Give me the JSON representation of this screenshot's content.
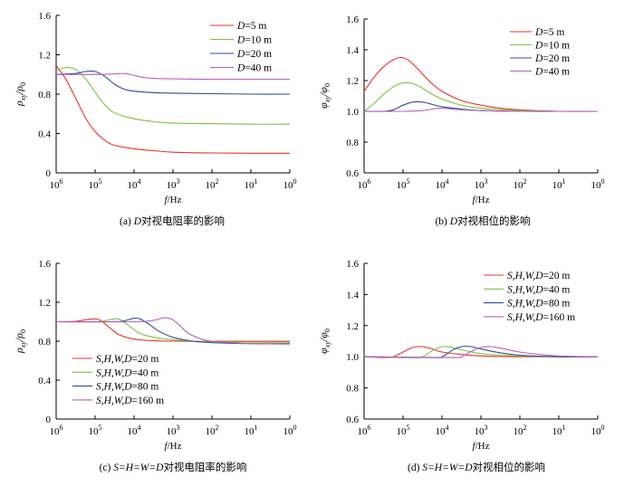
{
  "chart_data": [
    {
      "type": "line",
      "panel": "a",
      "caption_prefix": "(a) ",
      "caption_var": "D",
      "caption_rest": "对视电阻率的影响",
      "xlabel": "f/Hz",
      "ylabel": "ρxy/ρ0",
      "x_log": true,
      "x_ticks": [
        6,
        5,
        4,
        3,
        2,
        1,
        0
      ],
      "xlim_exp": [
        6,
        0
      ],
      "ylim": [
        0,
        1.6
      ],
      "yticks": [
        "0",
        "0.4",
        "0.8",
        "1.2",
        "1.6"
      ],
      "legend_loc": "top-right",
      "series": [
        {
          "name": "D=5 m",
          "legend_var": "D",
          "legend_val": "=5 m",
          "color": "#e8352a",
          "points": [
            [
              6,
              1.09
            ],
            [
              5.75,
              0.95
            ],
            [
              5.5,
              0.76
            ],
            [
              5.25,
              0.56
            ],
            [
              5,
              0.42
            ],
            [
              4.75,
              0.33
            ],
            [
              4.5,
              0.28
            ],
            [
              4,
              0.245
            ],
            [
              3.5,
              0.225
            ],
            [
              3,
              0.21
            ],
            [
              2,
              0.202
            ],
            [
              1,
              0.2
            ],
            [
              0,
              0.2
            ]
          ]
        },
        {
          "name": "D=10 m",
          "legend_var": "D",
          "legend_val": "=10 m",
          "color": "#7cc242",
          "points": [
            [
              6,
              1.04
            ],
            [
              5.75,
              1.07
            ],
            [
              5.5,
              1.05
            ],
            [
              5.25,
              0.96
            ],
            [
              5,
              0.82
            ],
            [
              4.75,
              0.69
            ],
            [
              4.5,
              0.61
            ],
            [
              4,
              0.55
            ],
            [
              3.5,
              0.52
            ],
            [
              3,
              0.505
            ],
            [
              2,
              0.5
            ],
            [
              1,
              0.495
            ],
            [
              0,
              0.495
            ]
          ]
        },
        {
          "name": "D=20 m",
          "legend_var": "D",
          "legend_val": "=20 m",
          "color": "#2e4b9b",
          "points": [
            [
              6,
              1.0
            ],
            [
              5.5,
              1.01
            ],
            [
              5.25,
              1.03
            ],
            [
              5,
              1.03
            ],
            [
              4.75,
              0.98
            ],
            [
              4.5,
              0.9
            ],
            [
              4.25,
              0.85
            ],
            [
              4,
              0.83
            ],
            [
              3.5,
              0.815
            ],
            [
              3,
              0.81
            ],
            [
              2,
              0.805
            ],
            [
              1,
              0.8
            ],
            [
              0,
              0.8
            ]
          ]
        },
        {
          "name": "D=40 m",
          "legend_var": "D",
          "legend_val": "=40 m",
          "color": "#b660b6",
          "points": [
            [
              6,
              1.0
            ],
            [
              5,
              1.0
            ],
            [
              4.5,
              1.005
            ],
            [
              4.25,
              1.01
            ],
            [
              4,
              0.99
            ],
            [
              3.75,
              0.97
            ],
            [
              3.5,
              0.96
            ],
            [
              3,
              0.955
            ],
            [
              2,
              0.95
            ],
            [
              1,
              0.95
            ],
            [
              0,
              0.95
            ]
          ]
        }
      ]
    },
    {
      "type": "line",
      "panel": "b",
      "caption_prefix": "(b) ",
      "caption_var": "D",
      "caption_rest": "对视相位的影响",
      "xlabel": "f/Hz",
      "ylabel": "φxy/φ0",
      "x_log": true,
      "x_ticks": [
        6,
        5,
        4,
        3,
        2,
        1,
        0
      ],
      "xlim_exp": [
        6,
        0
      ],
      "ylim": [
        0.6,
        1.6
      ],
      "yticks": [
        "0.6",
        "0.8",
        "1.0",
        "1.2",
        "1.4",
        "1.6"
      ],
      "legend_loc": "top-right",
      "series": [
        {
          "name": "D=5 m",
          "legend_var": "D",
          "legend_val": "=5 m",
          "color": "#e8352a",
          "points": [
            [
              6,
              1.13
            ],
            [
              5.75,
              1.22
            ],
            [
              5.5,
              1.29
            ],
            [
              5.25,
              1.335
            ],
            [
              5.05,
              1.35
            ],
            [
              4.85,
              1.33
            ],
            [
              4.6,
              1.27
            ],
            [
              4.3,
              1.19
            ],
            [
              4,
              1.13
            ],
            [
              3.5,
              1.07
            ],
            [
              3,
              1.04
            ],
            [
              2.5,
              1.02
            ],
            [
              2,
              1.01
            ],
            [
              1,
              1.0
            ],
            [
              0,
              1.0
            ]
          ]
        },
        {
          "name": "D=10 m",
          "legend_var": "D",
          "legend_val": "=10 m",
          "color": "#7cc242",
          "points": [
            [
              6,
              1.0
            ],
            [
              5.75,
              1.05
            ],
            [
              5.5,
              1.11
            ],
            [
              5.25,
              1.16
            ],
            [
              5,
              1.185
            ],
            [
              4.75,
              1.18
            ],
            [
              4.5,
              1.15
            ],
            [
              4.25,
              1.11
            ],
            [
              4,
              1.08
            ],
            [
              3.5,
              1.04
            ],
            [
              3,
              1.02
            ],
            [
              2,
              1.005
            ],
            [
              1,
              1.0
            ],
            [
              0,
              1.0
            ]
          ]
        },
        {
          "name": "D=20 m",
          "legend_var": "D",
          "legend_val": "=20 m",
          "color": "#2e4b9b",
          "points": [
            [
              6,
              1.0
            ],
            [
              5.5,
              1.0
            ],
            [
              5.25,
              1.01
            ],
            [
              5,
              1.04
            ],
            [
              4.75,
              1.06
            ],
            [
              4.5,
              1.06
            ],
            [
              4.25,
              1.045
            ],
            [
              4,
              1.03
            ],
            [
              3.5,
              1.015
            ],
            [
              3,
              1.005
            ],
            [
              2,
              1.0
            ],
            [
              1,
              1.0
            ],
            [
              0,
              1.0
            ]
          ]
        },
        {
          "name": "D=40 m",
          "legend_var": "D",
          "legend_val": "=40 m",
          "color": "#b660b6",
          "points": [
            [
              6,
              1.0
            ],
            [
              5,
              1.0
            ],
            [
              4.5,
              1.005
            ],
            [
              4.25,
              1.015
            ],
            [
              4,
              1.02
            ],
            [
              3.75,
              1.015
            ],
            [
              3.5,
              1.01
            ],
            [
              3,
              1.005
            ],
            [
              2,
              1.0
            ],
            [
              1,
              1.0
            ],
            [
              0,
              1.0
            ]
          ]
        }
      ]
    },
    {
      "type": "line",
      "panel": "c",
      "caption_prefix": "(c) ",
      "caption_var": "S=H=W=D",
      "caption_rest": "对视电阻率的影响",
      "xlabel": "f/Hz",
      "ylabel": "ρxy/ρ0",
      "x_log": true,
      "x_ticks": [
        6,
        5,
        4,
        3,
        2,
        1,
        0
      ],
      "xlim_exp": [
        6,
        0
      ],
      "ylim": [
        0,
        1.6
      ],
      "yticks": [
        "0",
        "0.4",
        "0.8",
        "1.2",
        "1.6"
      ],
      "legend_loc": "bottom-left",
      "series": [
        {
          "name": "S,H,W,D=20 m",
          "legend_var": "S,H,W,D",
          "legend_val": "=20 m",
          "color": "#e8352a",
          "points": [
            [
              6,
              1.0
            ],
            [
              5.5,
              1.005
            ],
            [
              5.25,
              1.02
            ],
            [
              5,
              1.03
            ],
            [
              4.85,
              1.01
            ],
            [
              4.6,
              0.93
            ],
            [
              4.4,
              0.87
            ],
            [
              4.1,
              0.83
            ],
            [
              3.75,
              0.81
            ],
            [
              3,
              0.8
            ],
            [
              2,
              0.8
            ],
            [
              1,
              0.8
            ],
            [
              0,
              0.8
            ]
          ]
        },
        {
          "name": "S,H,W,D=40 m",
          "legend_var": "S,H,W,D",
          "legend_val": "=40 m",
          "color": "#7cc242",
          "points": [
            [
              6,
              1.0
            ],
            [
              5,
              1.0
            ],
            [
              4.75,
              1.01
            ],
            [
              4.5,
              1.03
            ],
            [
              4.35,
              1.02
            ],
            [
              4.1,
              0.95
            ],
            [
              3.85,
              0.88
            ],
            [
              3.5,
              0.84
            ],
            [
              3,
              0.815
            ],
            [
              2.5,
              0.8
            ],
            [
              2,
              0.795
            ],
            [
              1,
              0.79
            ],
            [
              0,
              0.79
            ]
          ]
        },
        {
          "name": "S,H,W,D=80 m",
          "legend_var": "S,H,W,D",
          "legend_val": "=80 m",
          "color": "#2e4b9b",
          "points": [
            [
              6,
              1.0
            ],
            [
              4.5,
              1.0
            ],
            [
              4.25,
              1.01
            ],
            [
              4,
              1.035
            ],
            [
              3.85,
              1.03
            ],
            [
              3.6,
              0.97
            ],
            [
              3.35,
              0.9
            ],
            [
              3,
              0.84
            ],
            [
              2.5,
              0.8
            ],
            [
              2,
              0.785
            ],
            [
              1,
              0.775
            ],
            [
              0,
              0.775
            ]
          ]
        },
        {
          "name": "S,H,W,D=160 m",
          "legend_var": "S,H,W,D",
          "legend_val": "=160 m",
          "color": "#b660b6",
          "points": [
            [
              6,
              1.0
            ],
            [
              4,
              1.0
            ],
            [
              3.5,
              1.015
            ],
            [
              3.25,
              1.04
            ],
            [
              3.05,
              1.03
            ],
            [
              2.85,
              0.97
            ],
            [
              2.6,
              0.88
            ],
            [
              2.25,
              0.82
            ],
            [
              2,
              0.8
            ],
            [
              1.5,
              0.785
            ],
            [
              1,
              0.775
            ],
            [
              0,
              0.77
            ]
          ]
        }
      ]
    },
    {
      "type": "line",
      "panel": "d",
      "caption_prefix": "(d) ",
      "caption_var": "S=H=W=D",
      "caption_rest": "对视相位的影响",
      "xlabel": "f/Hz",
      "ylabel": "φxy/φ0",
      "x_log": true,
      "x_ticks": [
        6,
        5,
        4,
        3,
        2,
        1,
        0
      ],
      "xlim_exp": [
        6,
        0
      ],
      "ylim": [
        0.6,
        1.6
      ],
      "yticks": [
        "0.6",
        "0.8",
        "1.0",
        "1.2",
        "1.4",
        "1.6"
      ],
      "legend_loc": "top-right",
      "series": [
        {
          "name": "S,H,W,D=20 m",
          "legend_var": "S,H,W,D",
          "legend_val": "=20 m",
          "color": "#e8352a",
          "points": [
            [
              6,
              1.0
            ],
            [
              5.5,
              0.995
            ],
            [
              5.25,
              1.0
            ],
            [
              5,
              1.03
            ],
            [
              4.75,
              1.06
            ],
            [
              4.5,
              1.065
            ],
            [
              4.25,
              1.05
            ],
            [
              4,
              1.03
            ],
            [
              3.5,
              1.015
            ],
            [
              3,
              1.005
            ],
            [
              2,
              1.0
            ],
            [
              1,
              1.0
            ],
            [
              0,
              1.0
            ]
          ]
        },
        {
          "name": "S,H,W,D=40 m",
          "legend_var": "S,H,W,D",
          "legend_val": "=40 m",
          "color": "#7cc242",
          "points": [
            [
              6,
              1.0
            ],
            [
              4.75,
              0.995
            ],
            [
              4.5,
              1.0
            ],
            [
              4.25,
              1.04
            ],
            [
              4,
              1.065
            ],
            [
              3.75,
              1.06
            ],
            [
              3.5,
              1.045
            ],
            [
              3,
              1.02
            ],
            [
              2.5,
              1.01
            ],
            [
              2,
              1.005
            ],
            [
              1,
              1.0
            ],
            [
              0,
              1.0
            ]
          ]
        },
        {
          "name": "S,H,W,D=80 m",
          "legend_var": "S,H,W,D",
          "legend_val": "=80 m",
          "color": "#2e4b9b",
          "points": [
            [
              6,
              1.0
            ],
            [
              4.25,
              0.995
            ],
            [
              4,
              1.0
            ],
            [
              3.75,
              1.04
            ],
            [
              3.5,
              1.065
            ],
            [
              3.25,
              1.065
            ],
            [
              3,
              1.05
            ],
            [
              2.5,
              1.025
            ],
            [
              2,
              1.01
            ],
            [
              1,
              1.0
            ],
            [
              0,
              1.0
            ]
          ]
        },
        {
          "name": "S,H,W,D=160 m",
          "legend_var": "S,H,W,D",
          "legend_val": "=160 m",
          "color": "#b660b6",
          "points": [
            [
              6,
              1.0
            ],
            [
              3.75,
              0.995
            ],
            [
              3.5,
              1.0
            ],
            [
              3.25,
              1.035
            ],
            [
              3,
              1.06
            ],
            [
              2.75,
              1.065
            ],
            [
              2.5,
              1.055
            ],
            [
              2,
              1.03
            ],
            [
              1.5,
              1.015
            ],
            [
              1,
              1.005
            ],
            [
              0,
              1.0
            ]
          ]
        }
      ]
    }
  ]
}
